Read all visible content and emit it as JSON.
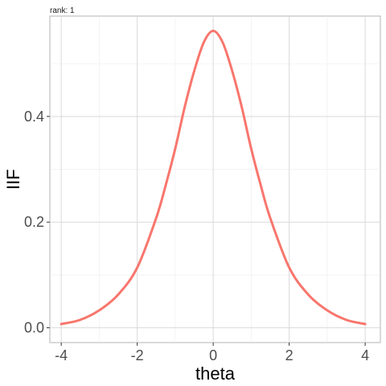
{
  "chart_data": {
    "type": "line",
    "facet_label": "rank: 1",
    "xlabel": "theta",
    "ylabel": "IIF",
    "xlim": [
      -4.3,
      4.4
    ],
    "ylim": [
      -0.028,
      0.59
    ],
    "x_ticks": [
      -4,
      -2,
      0,
      2,
      4
    ],
    "x_tick_labels": [
      "-4",
      "-2",
      "0",
      "2",
      "4"
    ],
    "y_ticks": [
      0.0,
      0.2,
      0.4
    ],
    "y_tick_labels": [
      "0.0",
      "0.2",
      "0.4"
    ],
    "grid": true,
    "series": [
      {
        "color": "#f8766d",
        "x": [
          -4.0,
          -3.5,
          -3.0,
          -2.5,
          -2.0,
          -1.5,
          -1.25,
          -1.0,
          -0.75,
          -0.5,
          -0.25,
          0.0,
          0.25,
          0.5,
          0.75,
          1.0,
          1.25,
          1.5,
          2.0,
          2.5,
          3.0,
          3.5,
          4.0
        ],
        "values": [
          0.007,
          0.015,
          0.033,
          0.063,
          0.114,
          0.208,
          0.27,
          0.339,
          0.418,
          0.486,
          0.54,
          0.562,
          0.54,
          0.486,
          0.418,
          0.339,
          0.27,
          0.208,
          0.114,
          0.063,
          0.033,
          0.015,
          0.007
        ]
      }
    ]
  }
}
